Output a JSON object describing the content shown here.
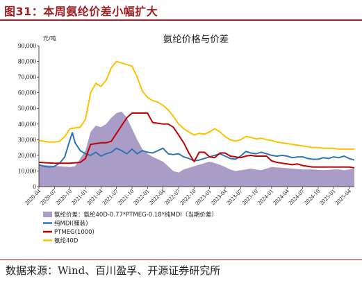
{
  "figure_title": "图31：本周氨纶价差小幅扩大",
  "source": "数据来源：Wind、百川盈孚、开源证券研究所",
  "chart_data": {
    "type": "line",
    "title": "氨纶价格与价差",
    "yunit": "元/吨",
    "ylim": [
      0,
      90000
    ],
    "yticks": [
      "0",
      "10,000",
      "20,000",
      "30,000",
      "40,000",
      "50,000",
      "60,000",
      "70,000",
      "80,000",
      "90,000"
    ],
    "x_tick_labels": [
      "2020-04",
      "2020-07",
      "2020-10",
      "2021-01",
      "2021-04",
      "2021-07",
      "2021-10",
      "2022-01",
      "2022-04",
      "2022-07",
      "2022-10",
      "2023-01",
      "2023-04",
      "2023-07",
      "2023-10",
      "2024-01",
      "2024-04",
      "2024-07",
      "2024-10",
      "2025-01",
      "2025-04"
    ],
    "x_range": [
      "2020-04",
      "2025-05"
    ],
    "series": [
      {
        "name": "氨纶价差：氨纶40D-0.77*PTMEG-0.18*纯MDI（当期价差）",
        "type": "area",
        "color": "#a99cc6",
        "points": [
          [
            "2020-04",
            14000
          ],
          [
            "2020-06",
            13500
          ],
          [
            "2020-08",
            13000
          ],
          [
            "2020-10",
            12500
          ],
          [
            "2020-11",
            13000
          ],
          [
            "2020-12",
            18000
          ],
          [
            "2021-01",
            23000
          ],
          [
            "2021-02",
            35000
          ],
          [
            "2021-03",
            39000
          ],
          [
            "2021-04",
            38000
          ],
          [
            "2021-05",
            40000
          ],
          [
            "2021-06",
            44000
          ],
          [
            "2021-07",
            47000
          ],
          [
            "2021-08",
            48000
          ],
          [
            "2021-09",
            44000
          ],
          [
            "2021-10",
            37000
          ],
          [
            "2021-11",
            30000
          ],
          [
            "2021-12",
            24000
          ],
          [
            "2022-01",
            21000
          ],
          [
            "2022-02",
            19000
          ],
          [
            "2022-03",
            17500
          ],
          [
            "2022-04",
            16000
          ],
          [
            "2022-05",
            13000
          ],
          [
            "2022-06",
            10000
          ],
          [
            "2022-07",
            9000
          ],
          [
            "2022-08",
            11000
          ],
          [
            "2022-09",
            12000
          ],
          [
            "2022-10",
            13000
          ],
          [
            "2022-11",
            14000
          ],
          [
            "2022-12",
            15000
          ],
          [
            "2023-01",
            16000
          ],
          [
            "2023-02",
            15000
          ],
          [
            "2023-03",
            14000
          ],
          [
            "2023-04",
            12500
          ],
          [
            "2023-05",
            11000
          ],
          [
            "2023-06",
            10000
          ],
          [
            "2023-07",
            10500
          ],
          [
            "2023-08",
            11000
          ],
          [
            "2023-09",
            11500
          ],
          [
            "2023-10",
            11000
          ],
          [
            "2023-11",
            10500
          ],
          [
            "2023-12",
            11500
          ],
          [
            "2024-01",
            12500
          ],
          [
            "2024-03",
            12000
          ],
          [
            "2024-05",
            11500
          ],
          [
            "2024-07",
            11000
          ],
          [
            "2024-09",
            11000
          ],
          [
            "2024-11",
            10500
          ],
          [
            "2025-01",
            11000
          ],
          [
            "2025-02",
            11000
          ],
          [
            "2025-03",
            10500
          ],
          [
            "2025-04",
            11000
          ],
          [
            "2025-05",
            11500
          ]
        ]
      },
      {
        "name": "纯MDI(桶装)",
        "type": "line",
        "color": "#2e74b5",
        "points": [
          [
            "2020-04",
            14000
          ],
          [
            "2020-05",
            13000
          ],
          [
            "2020-06",
            12500
          ],
          [
            "2020-07",
            13000
          ],
          [
            "2020-08",
            15000
          ],
          [
            "2020-09",
            19000
          ],
          [
            "2020-10",
            30000
          ],
          [
            "2020-10-15",
            34500
          ],
          [
            "2020-11",
            28000
          ],
          [
            "2020-12",
            23000
          ],
          [
            "2021-01",
            21000
          ],
          [
            "2021-02",
            20000
          ],
          [
            "2021-03",
            22000
          ],
          [
            "2021-04",
            19500
          ],
          [
            "2021-05",
            21000
          ],
          [
            "2021-06",
            22000
          ],
          [
            "2021-07",
            24500
          ],
          [
            "2021-08",
            23000
          ],
          [
            "2021-09",
            21000
          ],
          [
            "2021-10",
            24000
          ],
          [
            "2021-11",
            21000
          ],
          [
            "2021-12",
            23000
          ],
          [
            "2022-01",
            22000
          ],
          [
            "2022-02",
            21500
          ],
          [
            "2022-03",
            23000
          ],
          [
            "2022-04",
            24500
          ],
          [
            "2022-05",
            21000
          ],
          [
            "2022-06",
            20500
          ],
          [
            "2022-07",
            21000
          ],
          [
            "2022-08",
            19000
          ],
          [
            "2022-09",
            18000
          ],
          [
            "2022-10",
            16500
          ],
          [
            "2022-11",
            17000
          ],
          [
            "2022-12",
            18000
          ],
          [
            "2023-01",
            19000
          ],
          [
            "2023-02",
            20000
          ],
          [
            "2023-03",
            21000
          ],
          [
            "2023-04",
            19500
          ],
          [
            "2023-05",
            18000
          ],
          [
            "2023-06",
            17500
          ],
          [
            "2023-07",
            19500
          ],
          [
            "2023-08",
            22500
          ],
          [
            "2023-09",
            21500
          ],
          [
            "2023-10",
            21000
          ],
          [
            "2023-11",
            22000
          ],
          [
            "2023-12",
            21000
          ],
          [
            "2024-01",
            20000
          ],
          [
            "2024-02",
            19500
          ],
          [
            "2024-03",
            20000
          ],
          [
            "2024-04",
            19500
          ],
          [
            "2024-05",
            18500
          ],
          [
            "2024-06",
            19000
          ],
          [
            "2024-07",
            19000
          ],
          [
            "2024-08",
            18000
          ],
          [
            "2024-09",
            17500
          ],
          [
            "2024-10",
            17500
          ],
          [
            "2024-11",
            18500
          ],
          [
            "2024-12",
            18000
          ],
          [
            "2025-01",
            19000
          ],
          [
            "2025-02",
            18500
          ],
          [
            "2025-03",
            19500
          ],
          [
            "2025-04",
            18000
          ],
          [
            "2025-05",
            17000
          ]
        ]
      },
      {
        "name": "PTMEG(1000)",
        "type": "line",
        "color": "#c00000",
        "points": [
          [
            "2020-04",
            15500
          ],
          [
            "2020-07",
            15000
          ],
          [
            "2020-10",
            15000
          ],
          [
            "2020-12",
            15500
          ],
          [
            "2021-01",
            18000
          ],
          [
            "2021-02",
            27000
          ],
          [
            "2021-03",
            27500
          ],
          [
            "2021-04",
            28000
          ],
          [
            "2021-05",
            28000
          ],
          [
            "2021-06",
            29000
          ],
          [
            "2021-07",
            34000
          ],
          [
            "2021-08",
            39000
          ],
          [
            "2021-09",
            44000
          ],
          [
            "2021-10",
            47000
          ],
          [
            "2021-11",
            47000
          ],
          [
            "2021-12",
            47000
          ],
          [
            "2022-01",
            47000
          ],
          [
            "2022-02",
            41000
          ],
          [
            "2022-03",
            40500
          ],
          [
            "2022-04",
            40000
          ],
          [
            "2022-05",
            40000
          ],
          [
            "2022-06",
            38000
          ],
          [
            "2022-07",
            33000
          ],
          [
            "2022-08",
            28000
          ],
          [
            "2022-09",
            21500
          ],
          [
            "2022-10",
            16000
          ],
          [
            "2022-11",
            22000
          ],
          [
            "2022-12",
            22000
          ],
          [
            "2023-01",
            19000
          ],
          [
            "2023-02",
            18500
          ],
          [
            "2023-03",
            21500
          ],
          [
            "2023-04",
            21500
          ],
          [
            "2023-05",
            19500
          ],
          [
            "2023-06",
            19000
          ],
          [
            "2023-07",
            18500
          ],
          [
            "2023-08",
            19500
          ],
          [
            "2023-09",
            20000
          ],
          [
            "2023-10",
            19500
          ],
          [
            "2023-11",
            19500
          ],
          [
            "2023-12",
            19500
          ],
          [
            "2024-01",
            16500
          ],
          [
            "2024-02",
            15500
          ],
          [
            "2024-03",
            15000
          ],
          [
            "2024-04",
            14500
          ],
          [
            "2024-05",
            14000
          ],
          [
            "2024-06",
            14500
          ],
          [
            "2024-07",
            13500
          ],
          [
            "2024-08",
            13000
          ],
          [
            "2024-09",
            12500
          ],
          [
            "2024-10",
            12500
          ],
          [
            "2024-12",
            12500
          ],
          [
            "2025-02",
            12500
          ],
          [
            "2025-04",
            12500
          ],
          [
            "2025-05",
            12000
          ]
        ]
      },
      {
        "name": "氨纶40D",
        "type": "line",
        "color": "#ffc000",
        "points": [
          [
            "2020-04",
            29500
          ],
          [
            "2020-05",
            29000
          ],
          [
            "2020-06",
            28500
          ],
          [
            "2020-07",
            28500
          ],
          [
            "2020-08",
            29000
          ],
          [
            "2020-09",
            32000
          ],
          [
            "2020-10",
            37000
          ],
          [
            "2020-11",
            37500
          ],
          [
            "2020-12",
            38000
          ],
          [
            "2021-01",
            43000
          ],
          [
            "2021-02",
            60000
          ],
          [
            "2021-03",
            66000
          ],
          [
            "2021-04",
            64000
          ],
          [
            "2021-05",
            68000
          ],
          [
            "2021-06",
            76000
          ],
          [
            "2021-07",
            80000
          ],
          [
            "2021-08",
            79000
          ],
          [
            "2021-09",
            78000
          ],
          [
            "2021-10",
            77000
          ],
          [
            "2021-11",
            70000
          ],
          [
            "2021-12",
            61000
          ],
          [
            "2022-01",
            57000
          ],
          [
            "2022-02",
            55000
          ],
          [
            "2022-03",
            54000
          ],
          [
            "2022-04",
            52000
          ],
          [
            "2022-05",
            49000
          ],
          [
            "2022-06",
            45000
          ],
          [
            "2022-07",
            40000
          ],
          [
            "2022-08",
            37000
          ],
          [
            "2022-09",
            35000
          ],
          [
            "2022-10",
            33000
          ],
          [
            "2022-11",
            34000
          ],
          [
            "2022-12",
            33500
          ],
          [
            "2023-01",
            35000
          ],
          [
            "2023-02",
            37000
          ],
          [
            "2023-03",
            35000
          ],
          [
            "2023-04",
            32000
          ],
          [
            "2023-05",
            30000
          ],
          [
            "2023-06",
            29000
          ],
          [
            "2023-07",
            30000
          ],
          [
            "2023-08",
            32000
          ],
          [
            "2023-09",
            31500
          ],
          [
            "2023-10",
            30500
          ],
          [
            "2023-11",
            31000
          ],
          [
            "2023-12",
            30000
          ],
          [
            "2024-01",
            29500
          ],
          [
            "2024-02",
            28500
          ],
          [
            "2024-03",
            28000
          ],
          [
            "2024-04",
            27500
          ],
          [
            "2024-05",
            27000
          ],
          [
            "2024-06",
            26500
          ],
          [
            "2024-07",
            26000
          ],
          [
            "2024-08",
            25500
          ],
          [
            "2024-09",
            25000
          ],
          [
            "2024-10",
            25000
          ],
          [
            "2024-11",
            24500
          ],
          [
            "2024-12",
            24500
          ],
          [
            "2025-01",
            24500
          ],
          [
            "2025-02",
            24000
          ],
          [
            "2025-03",
            24000
          ],
          [
            "2025-04",
            24000
          ],
          [
            "2025-05",
            24000
          ]
        ]
      }
    ],
    "legend_position": "bottom-left",
    "grid": false
  }
}
